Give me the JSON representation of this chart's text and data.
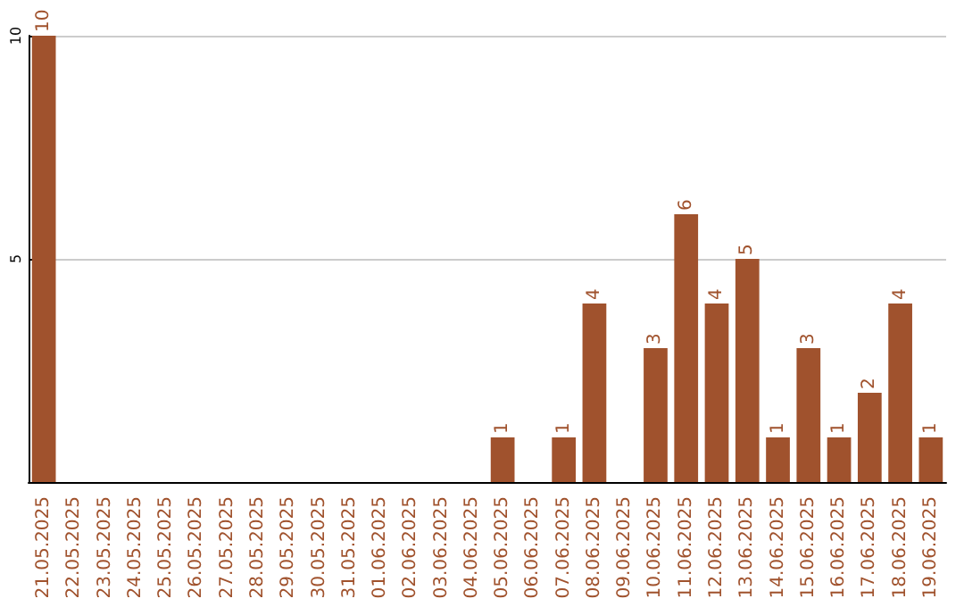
{
  "chart_data": {
    "type": "bar",
    "categories": [
      "21.05.2025",
      "22.05.2025",
      "23.05.2025",
      "24.05.2025",
      "25.05.2025",
      "26.05.2025",
      "27.05.2025",
      "28.05.2025",
      "29.05.2025",
      "30.05.2025",
      "31.05.2025",
      "01.06.2025",
      "02.06.2025",
      "03.06.2025",
      "04.06.2025",
      "05.06.2025",
      "06.06.2025",
      "07.06.2025",
      "08.06.2025",
      "09.06.2025",
      "10.06.2025",
      "11.06.2025",
      "12.06.2025",
      "13.06.2025",
      "14.06.2025",
      "15.06.2025",
      "16.06.2025",
      "17.06.2025",
      "18.06.2025",
      "19.06.2025"
    ],
    "values": [
      10,
      0,
      0,
      0,
      0,
      0,
      0,
      0,
      0,
      0,
      0,
      0,
      0,
      0,
      0,
      1,
      0,
      1,
      4,
      0,
      3,
      6,
      4,
      5,
      1,
      3,
      1,
      2,
      4,
      1
    ],
    "value_labels": [
      "10",
      null,
      null,
      null,
      null,
      null,
      null,
      null,
      null,
      null,
      null,
      null,
      null,
      null,
      null,
      "1",
      null,
      "1",
      "4",
      null,
      "3",
      "6",
      "4",
      "5",
      "1",
      "3",
      "1",
      "2",
      "4",
      "1"
    ],
    "color": "#a0522d",
    "ylim": [
      0,
      10
    ],
    "yticks": [
      {
        "value": 0,
        "label": null
      },
      5,
      10
    ],
    "grid": "y"
  }
}
